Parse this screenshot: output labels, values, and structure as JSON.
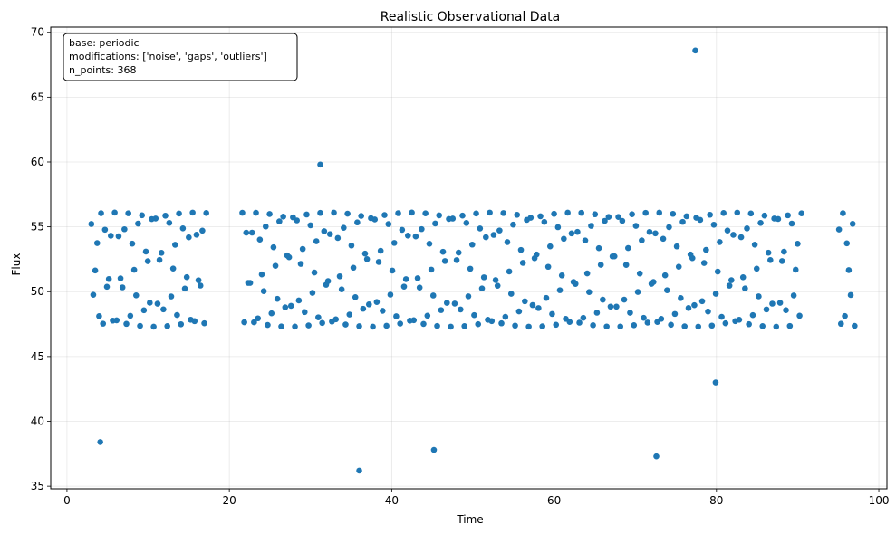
{
  "chart_data": {
    "type": "scatter",
    "title": "Realistic Observational Data",
    "xlabel": "Time",
    "ylabel": "Flux",
    "xlim": [
      -2,
      101
    ],
    "ylim": [
      34.8,
      70.4
    ],
    "xticks": [
      0,
      20,
      40,
      60,
      80,
      100
    ],
    "yticks": [
      35,
      40,
      45,
      50,
      55,
      60,
      65,
      70
    ],
    "grid": true,
    "color": "#1f77b4",
    "annotation": [
      "base: periodic",
      "modifications: ['noise', 'gaps', 'outliers']",
      "n_points: 368"
    ],
    "period": 8.0,
    "baseline": 51.7,
    "amplitude": 4.4,
    "n_points": 368,
    "segments": [
      [
        3.0,
        17.4
      ],
      [
        21.6,
        90.6
      ],
      [
        95.1,
        97.1
      ]
    ],
    "outliers": [
      {
        "x": 4.1,
        "y": 38.4
      },
      {
        "x": 31.2,
        "y": 59.8
      },
      {
        "x": 36.0,
        "y": 36.2
      },
      {
        "x": 45.2,
        "y": 37.8
      },
      {
        "x": 72.6,
        "y": 37.3
      },
      {
        "x": 77.4,
        "y": 68.6
      },
      {
        "x": 79.9,
        "y": 43.0
      }
    ]
  }
}
